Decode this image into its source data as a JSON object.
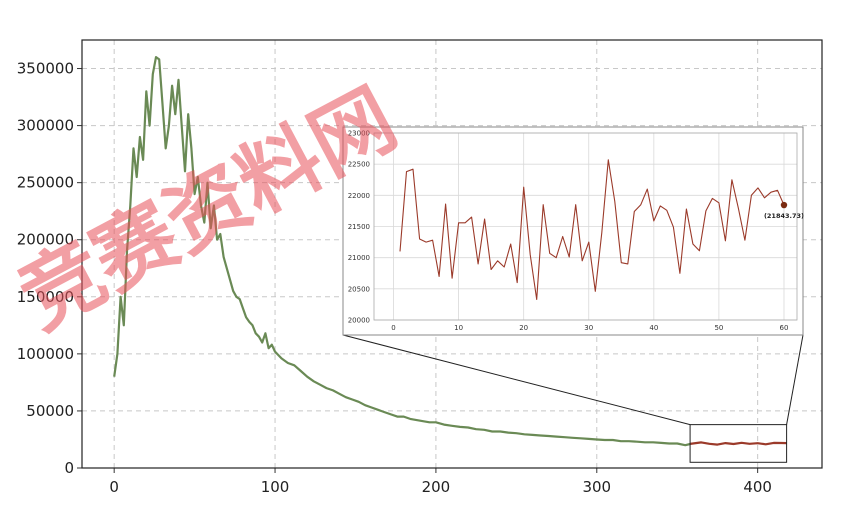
{
  "chart_data": [
    {
      "type": "line",
      "title": "",
      "xlabel": "",
      "ylabel": "",
      "xlim": [
        -20,
        440
      ],
      "ylim": [
        0,
        375000
      ],
      "grid": true,
      "xticks": [
        0,
        100,
        200,
        300,
        400
      ],
      "xtick_labels": [
        "0",
        "100",
        "200",
        "300",
        "400"
      ],
      "yticks": [
        0,
        50000,
        100000,
        150000,
        200000,
        250000,
        300000,
        350000
      ],
      "ytick_labels": [
        "0",
        "50000",
        "100000",
        "150000",
        "200000",
        "250000",
        "300000",
        "350000"
      ],
      "series": [
        {
          "color": "#6a8a55",
          "x": [
            0,
            2,
            4,
            6,
            8,
            10,
            12,
            14,
            16,
            18,
            20,
            22,
            24,
            26,
            28,
            30,
            32,
            34,
            36,
            38,
            40,
            42,
            44,
            46,
            48,
            50,
            52,
            54,
            56,
            58,
            60,
            62,
            64,
            66,
            68,
            70,
            72,
            74,
            76,
            78,
            80,
            82,
            84,
            86,
            88,
            90,
            92,
            94,
            96,
            98,
            100,
            104,
            108,
            112,
            116,
            120,
            124,
            128,
            132,
            136,
            140,
            144,
            148,
            152,
            156,
            160,
            164,
            168,
            172,
            176,
            180,
            184,
            188,
            192,
            196,
            200,
            205,
            210,
            215,
            220,
            225,
            230,
            235,
            240,
            245,
            250,
            255,
            260,
            265,
            270,
            275,
            280,
            285,
            290,
            295,
            300,
            305,
            310,
            315,
            320,
            325,
            330,
            335,
            340,
            345,
            350,
            355,
            358
          ],
          "y": [
            80000,
            100000,
            150000,
            125000,
            190000,
            230000,
            280000,
            255000,
            290000,
            270000,
            330000,
            300000,
            345000,
            360000,
            358000,
            320000,
            280000,
            300000,
            335000,
            310000,
            340000,
            300000,
            260000,
            310000,
            280000,
            240000,
            255000,
            230000,
            215000,
            250000,
            210000,
            230000,
            200000,
            205000,
            185000,
            175000,
            165000,
            155000,
            150000,
            148000,
            140000,
            132000,
            128000,
            125000,
            118000,
            115000,
            110000,
            118000,
            105000,
            108000,
            102000,
            96000,
            92000,
            90000,
            85000,
            80000,
            76000,
            73000,
            70000,
            68000,
            65000,
            62000,
            60000,
            58000,
            55000,
            53000,
            51000,
            49000,
            47000,
            45000,
            45000,
            43000,
            42000,
            41000,
            40000,
            40000,
            38000,
            37000,
            36000,
            35500,
            34000,
            33500,
            32000,
            32000,
            31000,
            30500,
            29500,
            29000,
            28500,
            28000,
            27500,
            27000,
            26500,
            26000,
            25500,
            25000,
            24500,
            24500,
            23500,
            23500,
            23000,
            22500,
            22500,
            22000,
            21500,
            21500,
            20000,
            21000
          ]
        },
        {
          "color": "#9b3a2a",
          "x": [
            358,
            365,
            370,
            375,
            380,
            385,
            390,
            395,
            400,
            405,
            410,
            415,
            418
          ],
          "y": [
            21100,
            22400,
            21200,
            20500,
            21800,
            21000,
            22100,
            21200,
            21700,
            20800,
            22000,
            21900,
            21844
          ]
        }
      ],
      "inset_box": {
        "xlim": [
          358,
          418
        ],
        "ylim": [
          5000,
          38000
        ]
      }
    },
    {
      "type": "line",
      "title": "",
      "xlim": [
        -3,
        62
      ],
      "ylim": [
        20000,
        23000
      ],
      "grid": true,
      "xticks": [
        0,
        10,
        20,
        30,
        40,
        50,
        60
      ],
      "xtick_labels": [
        "0",
        "10",
        "20",
        "30",
        "40",
        "50",
        "60"
      ],
      "yticks": [
        20000,
        20500,
        21000,
        21500,
        22000,
        22500,
        23000
      ],
      "ytick_labels": [
        "20000",
        "20500",
        "21000",
        "21500",
        "22000",
        "22500",
        "23000"
      ],
      "series": [
        {
          "color": "#9b3a2a",
          "x": [
            1,
            2,
            3,
            4,
            5,
            6,
            7,
            8,
            9,
            10,
            11,
            12,
            13,
            14,
            15,
            16,
            17,
            18,
            19,
            20,
            21,
            22,
            23,
            24,
            25,
            26,
            27,
            28,
            29,
            30,
            31,
            32,
            33,
            34,
            35,
            36,
            37,
            38,
            39,
            40,
            41,
            42,
            43,
            44,
            45,
            46,
            47,
            48,
            49,
            50,
            51,
            52,
            53,
            54,
            55,
            56,
            57,
            58,
            59,
            60
          ],
          "y": [
            21100,
            22380,
            22420,
            21300,
            21250,
            21280,
            20700,
            21860,
            20670,
            21560,
            21560,
            21650,
            20900,
            21620,
            20810,
            20950,
            20850,
            21220,
            20600,
            22130,
            21050,
            20330,
            21850,
            21070,
            21000,
            21340,
            21010,
            21850,
            20950,
            21250,
            20460,
            21400,
            22570,
            21900,
            20920,
            20900,
            21740,
            21850,
            22100,
            21590,
            21830,
            21760,
            21490,
            20750,
            21780,
            21220,
            21110,
            21750,
            21950,
            21880,
            21270,
            22250,
            21790,
            21280,
            22000,
            22120,
            21960,
            22050,
            22080,
            21844
          ]
        }
      ],
      "highlight_point": {
        "x": 60,
        "y": 21844,
        "label": "(21843.73)"
      }
    }
  ],
  "watermark": {
    "text": "竞赛资料网",
    "color": "#e7505a"
  }
}
